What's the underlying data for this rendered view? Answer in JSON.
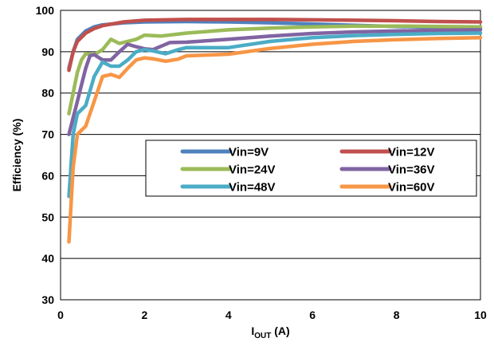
{
  "chart_data": {
    "type": "line",
    "title": "",
    "xlabel": {
      "main": "I",
      "sub": "OUT",
      "unit": " (A)"
    },
    "ylabel": "Efficiency (%)",
    "xlim": [
      0,
      10
    ],
    "ylim": [
      30,
      100
    ],
    "xticks": [
      0,
      2,
      4,
      6,
      8,
      10
    ],
    "yticks": [
      30,
      40,
      50,
      60,
      70,
      80,
      90,
      100
    ],
    "grid": "horizontal",
    "legend_placement": "center-right",
    "series": [
      {
        "name": "Vin=9V",
        "color": "#4F81BD",
        "points": [
          [
            0.2,
            86
          ],
          [
            0.3,
            90
          ],
          [
            0.4,
            93
          ],
          [
            0.6,
            95
          ],
          [
            0.8,
            96
          ],
          [
            1,
            96.5
          ],
          [
            1.5,
            97
          ],
          [
            2,
            97.2
          ],
          [
            3,
            97.3
          ],
          [
            4,
            97.2
          ],
          [
            5,
            97
          ],
          [
            6,
            96.7
          ],
          [
            7,
            96.4
          ],
          [
            8,
            96.1
          ],
          [
            9,
            95.9
          ],
          [
            10,
            95.7
          ]
        ]
      },
      {
        "name": "Vin=12V",
        "color": "#C0504D",
        "points": [
          [
            0.2,
            85.5
          ],
          [
            0.3,
            90
          ],
          [
            0.4,
            92.5
          ],
          [
            0.6,
            94.5
          ],
          [
            0.8,
            95.6
          ],
          [
            1,
            96.3
          ],
          [
            1.5,
            97.2
          ],
          [
            2,
            97.6
          ],
          [
            3,
            97.8
          ],
          [
            4,
            97.8
          ],
          [
            5,
            97.8
          ],
          [
            6,
            97.7
          ],
          [
            7,
            97.6
          ],
          [
            8,
            97.5
          ],
          [
            9,
            97.3
          ],
          [
            10,
            97.2
          ]
        ]
      },
      {
        "name": "Vin=24V",
        "color": "#9BBB59",
        "points": [
          [
            0.2,
            75
          ],
          [
            0.3,
            80
          ],
          [
            0.4,
            85
          ],
          [
            0.5,
            88
          ],
          [
            0.6,
            89.5
          ],
          [
            0.8,
            89.3
          ],
          [
            1,
            90.5
          ],
          [
            1.2,
            93
          ],
          [
            1.4,
            92
          ],
          [
            1.6,
            92.5
          ],
          [
            1.8,
            93
          ],
          [
            2,
            94
          ],
          [
            2.4,
            93.8
          ],
          [
            3,
            94.5
          ],
          [
            4,
            95.3
          ],
          [
            5,
            95.7
          ],
          [
            6,
            96
          ],
          [
            7,
            96.2
          ],
          [
            8,
            96.2
          ],
          [
            9,
            96.1
          ],
          [
            10,
            96
          ]
        ]
      },
      {
        "name": "Vin=36V",
        "color": "#8064A2",
        "points": [
          [
            0.2,
            70
          ],
          [
            0.3,
            74
          ],
          [
            0.4,
            78
          ],
          [
            0.5,
            82
          ],
          [
            0.6,
            86
          ],
          [
            0.7,
            89
          ],
          [
            0.8,
            89.3
          ],
          [
            1,
            88
          ],
          [
            1.2,
            88
          ],
          [
            1.4,
            90
          ],
          [
            1.6,
            91.8
          ],
          [
            1.8,
            91.2
          ],
          [
            2,
            90.7
          ],
          [
            2.2,
            90.5
          ],
          [
            2.6,
            92.2
          ],
          [
            3,
            92.3
          ],
          [
            4,
            93
          ],
          [
            5,
            93.8
          ],
          [
            6,
            94.4
          ],
          [
            7,
            94.8
          ],
          [
            8,
            95
          ],
          [
            9,
            95.2
          ],
          [
            10,
            95.3
          ]
        ]
      },
      {
        "name": "Vin=48V",
        "color": "#4BACC6",
        "points": [
          [
            0.2,
            55
          ],
          [
            0.3,
            70
          ],
          [
            0.4,
            75
          ],
          [
            0.5,
            76
          ],
          [
            0.6,
            77
          ],
          [
            0.8,
            84
          ],
          [
            1,
            87.5
          ],
          [
            1.2,
            86.5
          ],
          [
            1.4,
            86.5
          ],
          [
            1.6,
            88
          ],
          [
            1.8,
            90
          ],
          [
            2,
            90.5
          ],
          [
            2.2,
            90.2
          ],
          [
            2.5,
            89.5
          ],
          [
            2.8,
            90.5
          ],
          [
            3,
            91
          ],
          [
            4,
            91
          ],
          [
            5,
            92.5
          ],
          [
            6,
            93.4
          ],
          [
            7,
            93.9
          ],
          [
            8,
            94.2
          ],
          [
            9,
            94.4
          ],
          [
            10,
            94.5
          ]
        ]
      },
      {
        "name": "Vin=60V",
        "color": "#F79646",
        "points": [
          [
            0.2,
            44
          ],
          [
            0.3,
            62
          ],
          [
            0.4,
            70
          ],
          [
            0.5,
            71
          ],
          [
            0.6,
            72
          ],
          [
            0.8,
            78
          ],
          [
            1,
            84
          ],
          [
            1.2,
            84.5
          ],
          [
            1.4,
            83.8
          ],
          [
            1.6,
            86
          ],
          [
            1.8,
            88
          ],
          [
            2,
            88.5
          ],
          [
            2.2,
            88.3
          ],
          [
            2.5,
            87.7
          ],
          [
            2.8,
            88.2
          ],
          [
            3,
            89
          ],
          [
            4,
            89.4
          ],
          [
            5,
            90.8
          ],
          [
            6,
            91.8
          ],
          [
            7,
            92.5
          ],
          [
            8,
            92.9
          ],
          [
            9,
            93.2
          ],
          [
            10,
            93.4
          ]
        ]
      }
    ]
  }
}
